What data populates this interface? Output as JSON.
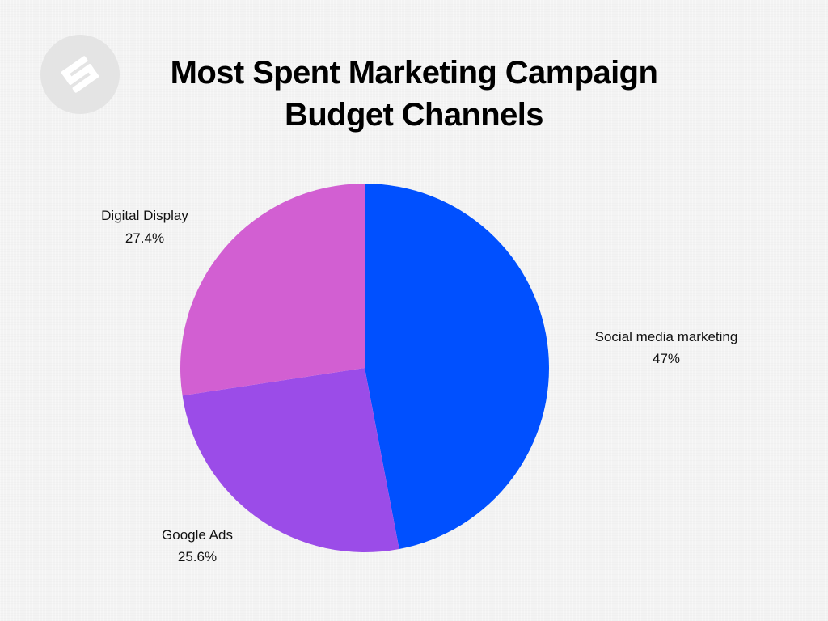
{
  "header": {
    "title_line1": "Most Spent Marketing Campaign",
    "title_line2": "Budget Channels"
  },
  "logo": {
    "icon": "brand-logo-icon"
  },
  "chart_data": {
    "type": "pie",
    "title": "Most Spent Marketing Campaign Budget Channels",
    "slices": [
      {
        "label": "Social media marketing",
        "value": 47,
        "value_label": "47%",
        "color": "#0050ff"
      },
      {
        "label": "Google Ads",
        "value": 25.6,
        "value_label": "25.6%",
        "color": "#9b4ce8"
      },
      {
        "label": "Digital Display",
        "value": 27.4,
        "value_label": "27.4%",
        "color": "#d25fd2"
      }
    ],
    "start": "top",
    "direction": "clockwise",
    "legend": "none"
  }
}
